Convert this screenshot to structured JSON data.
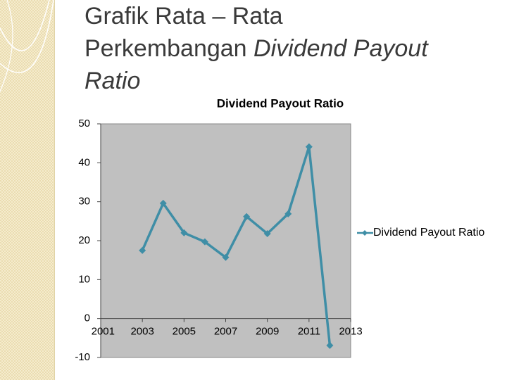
{
  "slide": {
    "title_segments": [
      {
        "text": "Grafik Rata – Rata",
        "italic": false,
        "break_after": true
      },
      {
        "text": "Perkembangan ",
        "italic": false,
        "break_after": false
      },
      {
        "text": "Dividend Payout",
        "italic": true,
        "break_after": true
      },
      {
        "text": "Ratio",
        "italic": true,
        "break_after": false
      }
    ]
  },
  "chart_data": {
    "type": "line",
    "title": "Dividend Payout Ratio",
    "x": [
      2003,
      2004,
      2005,
      2006,
      2007,
      2008,
      2009,
      2010,
      2011,
      2012
    ],
    "series": [
      {
        "name": "Dividend Payout Ratio",
        "color": "#3f8ea6",
        "values": [
          17.5,
          29.6,
          22,
          19.7,
          15.7,
          26.2,
          21.8,
          26.9,
          44.1,
          -6.9
        ]
      }
    ],
    "xlim": [
      2001,
      2013
    ],
    "xticks": [
      2001,
      2003,
      2005,
      2007,
      2009,
      2011,
      2013
    ],
    "ylim": [
      -10,
      50
    ],
    "yticks": [
      -10,
      0,
      10,
      20,
      30,
      40,
      50
    ],
    "grid": false,
    "legend": "right",
    "plot_background": "#c0c0c0"
  }
}
